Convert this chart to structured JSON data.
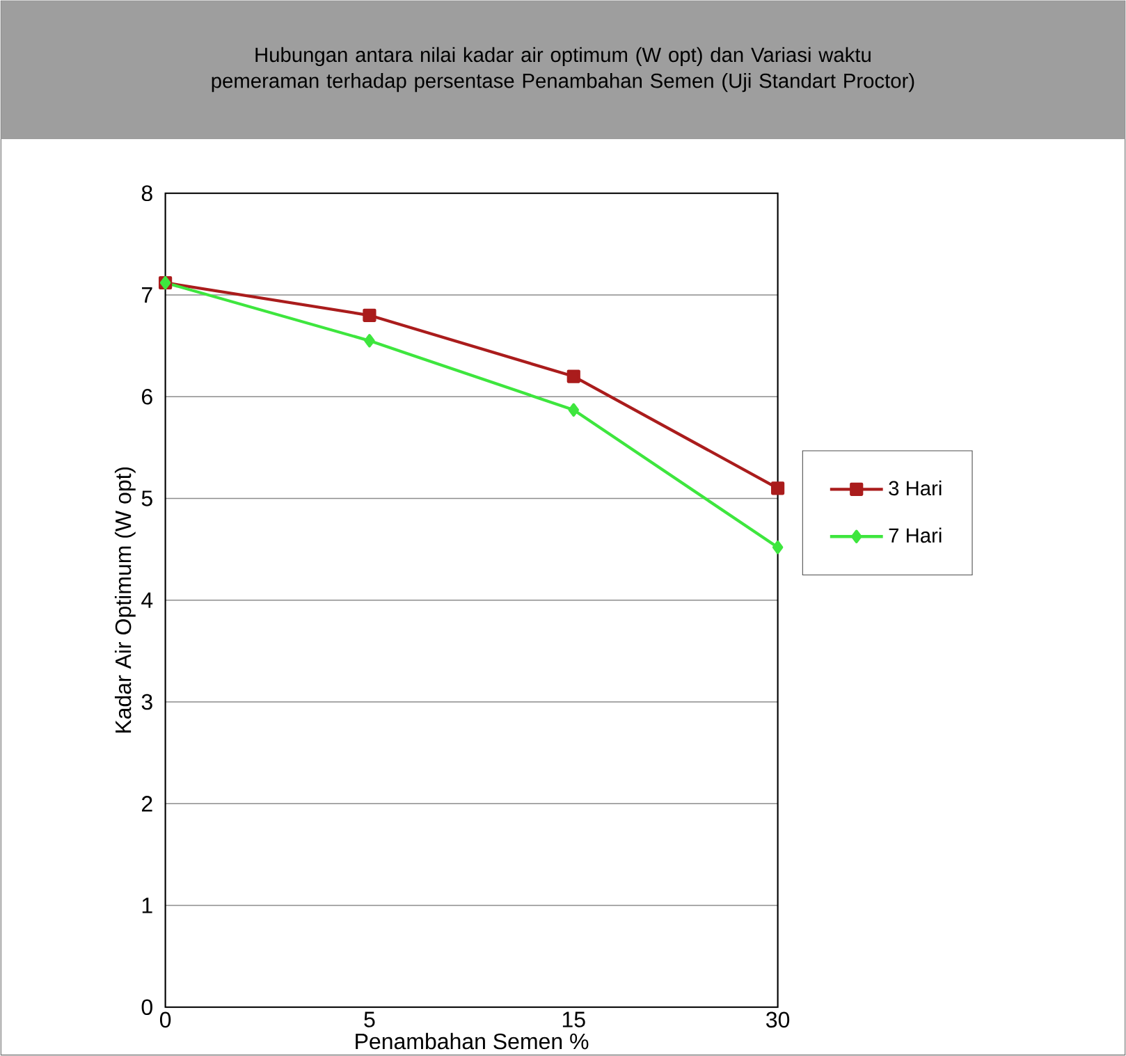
{
  "chart_data": {
    "type": "line",
    "title": "Hubungan antara nilai kadar air optimum (W opt) dan Variasi waktu pemeraman terhadap persentase Penambahan Semen (Uji Standart Proctor)",
    "xlabel": "Penambahan Semen %",
    "ylabel": "Kadar Air Optimum (W opt)",
    "categories": [
      "0",
      "5",
      "15",
      "30"
    ],
    "series": [
      {
        "name": "3 Hari",
        "color": "#aa1c1c",
        "marker": "square",
        "values": [
          7.12,
          6.8,
          6.2,
          5.1
        ]
      },
      {
        "name": "7 Hari",
        "color": "#3ee63e",
        "marker": "diamond",
        "values": [
          7.12,
          6.55,
          5.87,
          4.52
        ]
      }
    ],
    "ylim": [
      0,
      8
    ],
    "yticks": [
      0,
      1,
      2,
      3,
      4,
      5,
      6,
      7,
      8
    ],
    "grid": "y",
    "legend": "right",
    "line_style": "solid"
  }
}
